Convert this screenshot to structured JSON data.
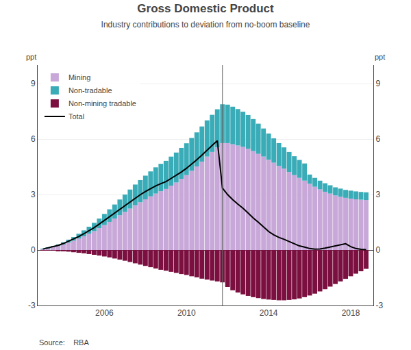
{
  "chart_data": {
    "type": "bar",
    "stacked": true,
    "title": "Gross Domestic Product",
    "subtitle": "Industry contributions to deviation from no-boom baseline",
    "ylabel": "ppt",
    "y2label": "ppt",
    "source": "Source:    RBA",
    "x": [
      2003.0,
      2003.25,
      2003.5,
      2003.75,
      2004.0,
      2004.25,
      2004.5,
      2004.75,
      2005.0,
      2005.25,
      2005.5,
      2005.75,
      2006.0,
      2006.25,
      2006.5,
      2006.75,
      2007.0,
      2007.25,
      2007.5,
      2007.75,
      2008.0,
      2008.25,
      2008.5,
      2008.75,
      2009.0,
      2009.25,
      2009.5,
      2009.75,
      2010.0,
      2010.25,
      2010.5,
      2010.75,
      2011.0,
      2011.25,
      2011.5,
      2011.75,
      2012.0,
      2012.25,
      2012.5,
      2012.75,
      2013.0,
      2013.25,
      2013.5,
      2013.75,
      2014.0,
      2014.25,
      2014.5,
      2014.75,
      2015.0,
      2015.25,
      2015.5,
      2015.75,
      2016.0,
      2016.25,
      2016.5,
      2016.75,
      2017.0,
      2017.25,
      2017.5,
      2017.75,
      2018.0,
      2018.25,
      2018.5,
      2018.75
    ],
    "series": [
      {
        "name": "Mining",
        "type": "bar",
        "color": "#C8A8D8",
        "values": [
          0.05,
          0.1,
          0.15,
          0.22,
          0.3,
          0.4,
          0.5,
          0.62,
          0.74,
          0.88,
          1.02,
          1.18,
          1.35,
          1.52,
          1.7,
          1.88,
          2.06,
          2.24,
          2.42,
          2.58,
          2.74,
          2.9,
          3.05,
          3.18,
          3.3,
          3.48,
          3.65,
          3.85,
          4.05,
          4.28,
          4.52,
          4.78,
          5.05,
          5.3,
          5.55,
          5.78,
          5.78,
          5.72,
          5.65,
          5.58,
          5.48,
          5.35,
          5.2,
          5.05,
          4.88,
          4.72,
          4.55,
          4.4,
          4.22,
          4.05,
          3.9,
          3.75,
          3.58,
          3.42,
          3.28,
          3.15,
          3.05,
          2.95,
          2.88,
          2.82,
          2.78,
          2.74,
          2.72,
          2.7
        ]
      },
      {
        "name": "Non-tradable",
        "type": "bar",
        "color": "#3AACB8",
        "values": [
          0.01,
          0.03,
          0.05,
          0.08,
          0.12,
          0.16,
          0.2,
          0.26,
          0.32,
          0.38,
          0.45,
          0.52,
          0.6,
          0.68,
          0.76,
          0.85,
          0.94,
          1.03,
          1.12,
          1.2,
          1.28,
          1.35,
          1.42,
          1.48,
          1.52,
          1.57,
          1.62,
          1.67,
          1.72,
          1.78,
          1.84,
          1.9,
          1.96,
          2.01,
          2.06,
          2.1,
          2.08,
          2.03,
          1.97,
          1.9,
          1.82,
          1.73,
          1.63,
          1.52,
          1.42,
          1.32,
          1.23,
          1.15,
          1.08,
          1.02,
          0.97,
          0.93,
          0.5,
          0.48,
          0.47,
          0.46,
          0.45,
          0.44,
          0.44,
          0.43,
          0.43,
          0.43,
          0.42,
          0.42
        ]
      },
      {
        "name": "Non-mining tradable",
        "type": "bar",
        "color": "#7B1040",
        "values": [
          -0.01,
          -0.02,
          -0.03,
          -0.05,
          -0.07,
          -0.09,
          -0.12,
          -0.15,
          -0.18,
          -0.22,
          -0.26,
          -0.3,
          -0.35,
          -0.4,
          -0.46,
          -0.52,
          -0.58,
          -0.65,
          -0.72,
          -0.79,
          -0.86,
          -0.93,
          -1.0,
          -1.07,
          -1.12,
          -1.18,
          -1.24,
          -1.3,
          -1.35,
          -1.42,
          -1.48,
          -1.55,
          -1.6,
          -1.65,
          -1.7,
          -1.75,
          -2.0,
          -2.18,
          -2.3,
          -2.4,
          -2.48,
          -2.55,
          -2.6,
          -2.65,
          -2.68,
          -2.7,
          -2.72,
          -2.72,
          -2.7,
          -2.67,
          -2.62,
          -2.55,
          -2.46,
          -2.36,
          -2.24,
          -2.12,
          -1.98,
          -1.84,
          -1.7,
          -1.56,
          -1.42,
          -1.28,
          -1.15,
          -1.02
        ]
      },
      {
        "name": "Total",
        "type": "line",
        "color": "#000000",
        "values": [
          0.05,
          0.11,
          0.17,
          0.25,
          0.35,
          0.47,
          0.58,
          0.73,
          0.88,
          1.04,
          1.21,
          1.4,
          1.6,
          1.8,
          2.0,
          2.21,
          2.42,
          2.62,
          2.82,
          2.99,
          3.16,
          3.32,
          3.47,
          3.59,
          3.7,
          3.87,
          4.03,
          4.22,
          4.42,
          4.64,
          4.88,
          5.13,
          5.41,
          5.66,
          5.91,
          3.35,
          3.0,
          2.72,
          2.48,
          2.26,
          2.0,
          1.73,
          1.5,
          1.25,
          1.0,
          0.82,
          0.68,
          0.58,
          0.45,
          0.32,
          0.22,
          0.16,
          0.08,
          0.05,
          0.06,
          0.1,
          0.16,
          0.22,
          0.28,
          0.34,
          0.18,
          0.08,
          0.04,
          0.02
        ]
      }
    ],
    "vline": 2011.75,
    "vline_color": "#666666",
    "xlim": [
      2002.75,
      2019.1
    ],
    "xticks": [
      2006,
      2010,
      2014,
      2018
    ],
    "ylim": [
      -3,
      10
    ],
    "yticks": [
      -3,
      0,
      3,
      6,
      9
    ],
    "y2lim": [
      -3,
      10
    ],
    "y2ticks": [
      -3,
      0,
      3,
      6,
      9
    ],
    "grid": "y",
    "legend": "upper left"
  }
}
